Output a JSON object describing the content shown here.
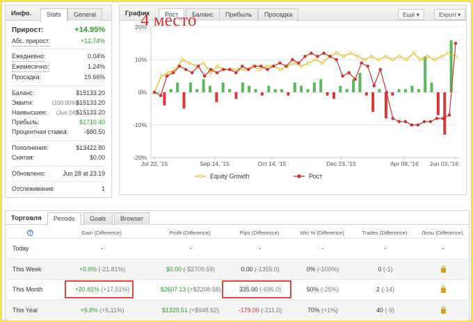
{
  "info_panel": {
    "title": "Инфо.",
    "tabs": [
      "Stats",
      "General"
    ],
    "growth": {
      "label": "Прирост:",
      "value": "+14.95%"
    },
    "abs_growth": {
      "label": "Абс. прирост:",
      "value": "+12.74%"
    },
    "daily": {
      "label": "Ежедневно:",
      "value": "0.04%"
    },
    "monthly": {
      "label": "Ежемесячно:",
      "value": "1.24%"
    },
    "drawdown": {
      "label": "Просадка:",
      "value": "19.66%"
    },
    "balance": {
      "label": "Баланс:",
      "value": "$15133.20"
    },
    "equity": {
      "label": "Эквити:",
      "note": "(100.00%)",
      "value": "$15133.20"
    },
    "highest": {
      "label": "Наивысшее:",
      "note": "(Jun 24)",
      "value": "$15133.20"
    },
    "profit": {
      "label": "Прибыль:",
      "value": "$1710.40"
    },
    "interest": {
      "label": "Процентная ставка:",
      "value": "-$80.50"
    },
    "deposits": {
      "label": "Пополнения:",
      "value": "$13422.80"
    },
    "withdrawals": {
      "label": "Снятия:",
      "value": "$0.00"
    },
    "updated": {
      "label": "Обновлено:",
      "value": "Jun 28 at 23:19"
    },
    "tracking": {
      "label": "Отслеживание",
      "value": "1"
    }
  },
  "chart_panel": {
    "title": "График",
    "tabs": [
      "Рост",
      "Баланс",
      "Прибыль",
      "Просадка"
    ],
    "buttons": [
      "Ещё",
      "Export"
    ],
    "overlay_text": "4 место"
  },
  "chart_data": {
    "type": "line",
    "x_ticks": [
      "Jul 22, '15",
      "Sep 14, '15",
      "Oct 14, '15",
      "Dec 23, '15",
      "Apr 08, '16",
      "Jun 03, '16"
    ],
    "y_ticks": [
      "20%",
      "10%",
      "0%",
      "-10%",
      "-20%"
    ],
    "ylim": [
      -20,
      20
    ],
    "grid": true,
    "legend_position": "bottom",
    "series": [
      {
        "name": "Equity Growth",
        "color": "#e6b800",
        "values": [
          0,
          5,
          6,
          7,
          10,
          9,
          8,
          9,
          6,
          8,
          7,
          7,
          7,
          7,
          8,
          7,
          8,
          8,
          7,
          8,
          9,
          8,
          9,
          10,
          9,
          11,
          12,
          11,
          12,
          11,
          10,
          11,
          10,
          11,
          10,
          11,
          10,
          12,
          10,
          11,
          10,
          11,
          12,
          11
        ]
      },
      {
        "name": "Рост",
        "color": "#d23030",
        "values": [
          0,
          -1,
          5,
          6,
          8,
          7,
          6,
          8,
          5,
          7,
          6,
          7,
          7,
          6,
          8,
          7,
          8,
          8,
          7,
          8,
          9,
          8,
          10,
          9,
          11,
          12,
          11,
          12,
          11,
          10,
          5,
          6,
          4,
          9,
          8,
          2,
          7,
          0,
          -8,
          -9,
          -9,
          -10,
          -10,
          -9,
          -9,
          -8,
          -8,
          -7,
          15
        ]
      }
    ],
    "bars": [
      0,
      -4,
      1,
      3,
      -5,
      3,
      1,
      4,
      2,
      -3,
      3,
      1,
      -2,
      3,
      2,
      1,
      -1,
      2,
      1,
      1,
      -1,
      3,
      2,
      1,
      3,
      4,
      -1,
      -2,
      2,
      1,
      4,
      6,
      -1,
      -6,
      1,
      -8,
      -1,
      1,
      1,
      2,
      1,
      11,
      3,
      -7,
      -13,
      16
    ]
  },
  "trading_panel": {
    "title": "Торговля",
    "tabs": [
      "Periods",
      "Goals",
      "Browser"
    ],
    "help_icon": "?",
    "columns": [
      "Gain (Difference)",
      "Profit (Difference)",
      "Pips (Difference)",
      "Win % (Difference)",
      "Trades (Difference)",
      "Лоты (Difference)"
    ],
    "rows": [
      {
        "label": "Today",
        "gain": "-",
        "gain_diff": "",
        "profit": "-",
        "profit_diff": "",
        "pips": "-",
        "pips_diff": "",
        "win": "-",
        "win_diff": "",
        "trades": "-",
        "trades_diff": "",
        "lots": "-"
      },
      {
        "label": "This Week",
        "gain": "+0.0%",
        "gain_diff": "(-21.81%)",
        "profit": "$0.00",
        "profit_diff": "(-$2709.59)",
        "pips": "0.00",
        "pips_diff": "(-1355.0)",
        "win": "0%",
        "win_diff": "(-100%)",
        "trades": "0",
        "trades_diff": "(-1)",
        "lots": "lock"
      },
      {
        "label": "This Month",
        "gain": "+20.81%",
        "gain_diff": "(+17.51%)",
        "profit": "$2607.13",
        "profit_diff": "(+$2208.58)",
        "pips": "335.00",
        "pips_diff": "(-696.0)",
        "win": "50%",
        "win_diff": "(-25%)",
        "trades": "2",
        "trades_diff": "(-14)",
        "lots": "lock"
      },
      {
        "label": "This Year",
        "gain": "+9.8%",
        "gain_diff": "(+5.11%)",
        "profit": "$1329.51",
        "profit_diff": "(+$948.62)",
        "pips": "-179.00",
        "pips_diff": "(-211.0)",
        "win": "70%",
        "win_diff": "(+1%)",
        "trades": "40",
        "trades_diff": "(-9)",
        "lots": "lock"
      }
    ]
  }
}
